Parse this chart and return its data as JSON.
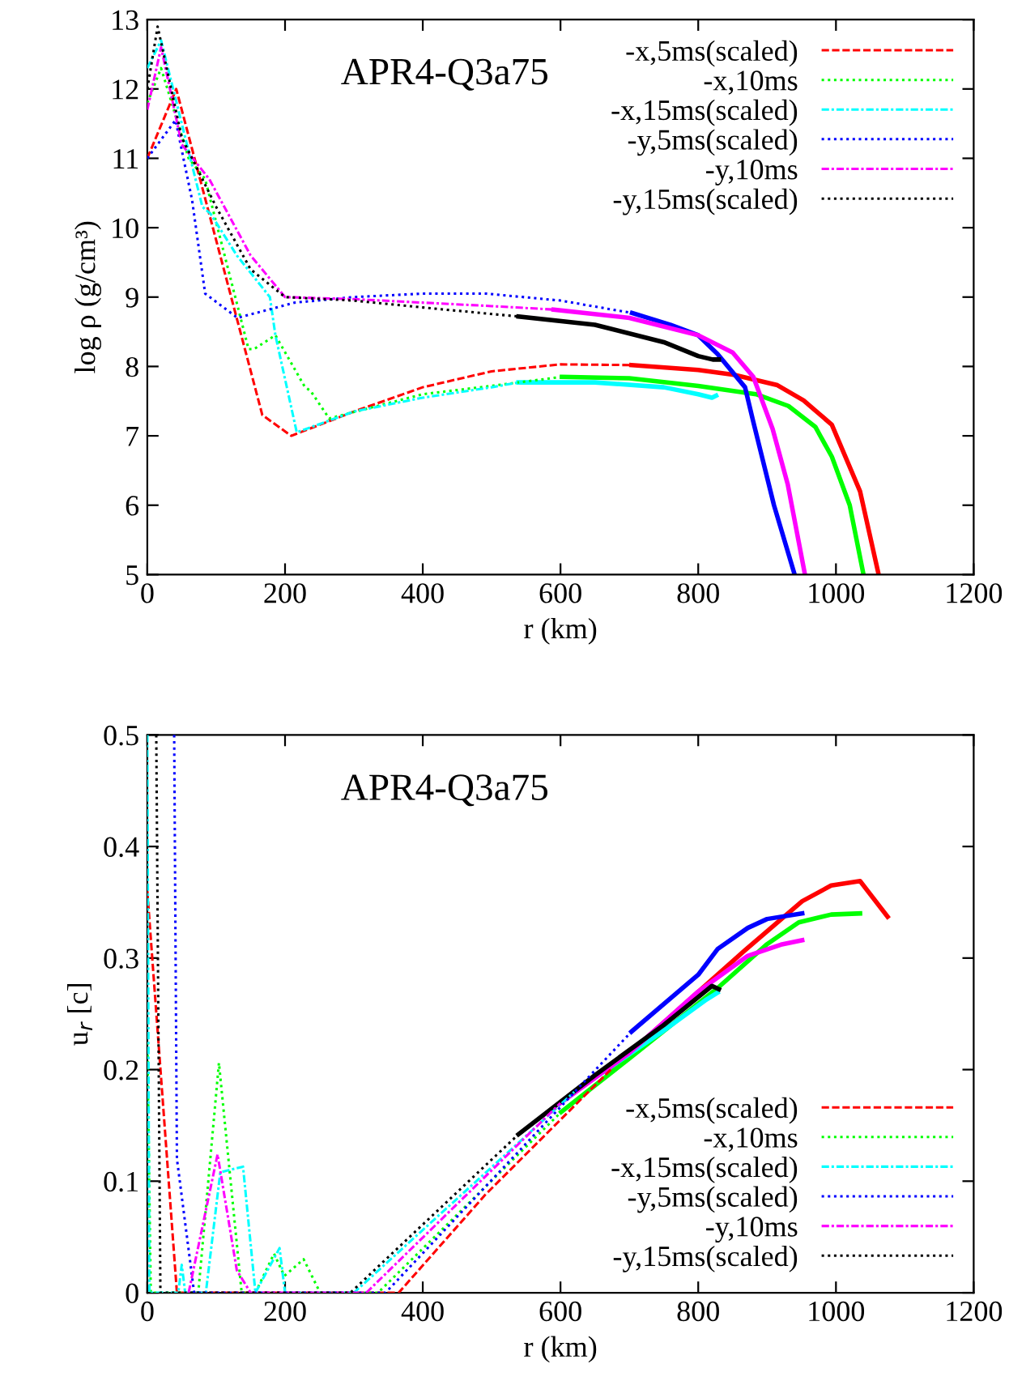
{
  "chart_data": [
    {
      "type": "line",
      "xlabel": "r (km)",
      "ylabel": "log ρ (g/cm³)",
      "annotations": [
        "APR4-Q3a75"
      ],
      "xlim": [
        0,
        1200
      ],
      "xticks": [
        0,
        200,
        400,
        600,
        800,
        1000,
        1200
      ],
      "ylim": [
        5,
        13
      ],
      "yticks": [
        5,
        6,
        7,
        8,
        9,
        10,
        11,
        12,
        13
      ],
      "grid": false,
      "legend": "top right",
      "marker": "none",
      "series": [
        {
          "name": "-x,5ms(scaled)",
          "color": "#ff0000",
          "line_style": "dashed",
          "x": [
            0,
            42,
            167,
            209,
            300,
            400,
            500,
            600,
            703
          ],
          "values": [
            11.0,
            12.0,
            7.3,
            7.0,
            7.35,
            7.7,
            7.93,
            8.03,
            8.02
          ]
        },
        {
          "name": "-x,10ms",
          "color": "#00ff00",
          "line_style": "dotted",
          "x": [
            0,
            20,
            60,
            84,
            147,
            155,
            186,
            229,
            237,
            264,
            400,
            500,
            602
          ],
          "values": [
            11.8,
            12.3,
            11.0,
            10.7,
            8.25,
            8.25,
            8.45,
            7.7,
            7.65,
            7.25,
            7.6,
            7.72,
            7.85
          ]
        },
        {
          "name": "-x,15ms(scaled)",
          "color": "#00ffff",
          "line_style": "dashdot",
          "x": [
            0,
            20,
            50,
            80,
            92,
            130,
            178,
            186,
            217,
            300,
            400,
            500,
            539
          ],
          "values": [
            12.3,
            12.7,
            11.5,
            10.3,
            10.2,
            9.6,
            9.0,
            8.45,
            7.05,
            7.35,
            7.55,
            7.7,
            7.77
          ]
        },
        {
          "name": "-y,5ms(scaled)",
          "color": "#0000ff",
          "line_style": "dotted",
          "x": [
            0,
            41,
            65,
            84,
            131,
            214,
            300,
            400,
            492,
            600,
            704
          ],
          "values": [
            11.0,
            11.55,
            10.4,
            9.05,
            8.7,
            8.92,
            9.0,
            9.05,
            9.05,
            8.95,
            8.77
          ]
        },
        {
          "name": "-y,10ms",
          "color": "#ff00ff",
          "line_style": "dashdot",
          "x": [
            0,
            20,
            50,
            90,
            150,
            200,
            300,
            400,
            500,
            590
          ],
          "values": [
            11.7,
            12.6,
            11.2,
            10.7,
            9.6,
            9.0,
            8.97,
            8.92,
            8.87,
            8.82
          ]
        },
        {
          "name": "-y,15ms(scaled)",
          "color": "#000000",
          "line_style": "dotted",
          "x": [
            0,
            15,
            50,
            100,
            150,
            200,
            300,
            400,
            539
          ],
          "values": [
            12.0,
            12.9,
            11.3,
            10.3,
            9.4,
            9.0,
            8.95,
            8.85,
            8.72
          ]
        },
        {
          "color": "#ff0000",
          "line_style": "solid",
          "x": [
            703,
            800,
            852,
            915,
            953,
            994,
            1035,
            1062
          ],
          "values": [
            8.02,
            7.95,
            7.88,
            7.73,
            7.51,
            7.16,
            6.2,
            5.0
          ]
        },
        {
          "color": "#00ff00",
          "line_style": "solid",
          "x": [
            602,
            700,
            800,
            884,
            931,
            970,
            994,
            1020,
            1040
          ],
          "values": [
            7.85,
            7.83,
            7.72,
            7.6,
            7.43,
            7.13,
            6.7,
            6.0,
            5.0
          ]
        },
        {
          "color": "#00ffff",
          "line_style": "solid",
          "x": [
            539,
            650,
            750,
            800,
            820,
            826
          ],
          "values": [
            7.77,
            7.77,
            7.7,
            7.6,
            7.55,
            7.58
          ]
        },
        {
          "color": "#0000ff",
          "line_style": "solid",
          "x": [
            704,
            760,
            800,
            828,
            868,
            880,
            910,
            940
          ],
          "values": [
            8.77,
            8.6,
            8.45,
            8.18,
            7.7,
            7.2,
            6.0,
            5.0
          ]
        },
        {
          "color": "#ff00ff",
          "line_style": "solid",
          "x": [
            590,
            700,
            800,
            850,
            880,
            908,
            930,
            955
          ],
          "values": [
            8.82,
            8.7,
            8.45,
            8.2,
            7.85,
            7.1,
            6.3,
            5.0
          ]
        },
        {
          "color": "#000000",
          "line_style": "solid",
          "x": [
            539,
            650,
            750,
            800,
            821,
            830
          ],
          "values": [
            8.72,
            8.6,
            8.35,
            8.15,
            8.1,
            8.1
          ]
        }
      ]
    },
    {
      "type": "line",
      "xlabel": "r (km)",
      "ylabel": "u$_{r}$ [c]",
      "annotations": [
        "APR4-Q3a75"
      ],
      "xlim": [
        0,
        1200
      ],
      "xticks": [
        0,
        200,
        400,
        600,
        800,
        1000,
        1200
      ],
      "ylim": [
        0,
        0.5
      ],
      "yticks": [
        0,
        0.1,
        0.2,
        0.3,
        0.4,
        0.5
      ],
      "grid": false,
      "legend": "bottom right",
      "marker": "none",
      "series": [
        {
          "name": "-x,5ms(scaled)",
          "color": "#ff0000",
          "line_style": "dashed",
          "x": [
            0,
            43,
            365,
            491,
            673
          ],
          "values": [
            0.36,
            0.0,
            0.0,
            0.088,
            0.2
          ]
        },
        {
          "name": "-x,10ms",
          "color": "#00ff00",
          "line_style": "dotted",
          "x": [
            0,
            5,
            74,
            104,
            137,
            157,
            184,
            199,
            227,
            251,
            335,
            601
          ],
          "values": [
            0.23,
            0.0,
            0.0,
            0.206,
            0.0,
            0.0,
            0.035,
            0.015,
            0.03,
            0.0,
            0.0,
            0.162
          ]
        },
        {
          "name": "-x,15ms(scaled)",
          "color": "#00ffff",
          "line_style": "dashdot",
          "x": [
            0,
            3,
            45,
            50,
            55,
            85,
            106,
            139,
            157,
            192,
            200,
            300,
            620
          ],
          "values": [
            0.5,
            0.0,
            0.0,
            0.025,
            0.0,
            0.0,
            0.108,
            0.113,
            0.0,
            0.04,
            0.0,
            0.0,
            0.18
          ]
        },
        {
          "name": "-y,5ms(scaled)",
          "color": "#0000ff",
          "line_style": "dotted",
          "x": [
            39,
            43,
            68,
            346,
            703
          ],
          "values": [
            0.5,
            0.12,
            0.0,
            0.0,
            0.234
          ]
        },
        {
          "name": "-y,10ms",
          "color": "#ff00ff",
          "line_style": "dashdot",
          "x": [
            60,
            102,
            130,
            150,
            318,
            600
          ],
          "values": [
            0.0,
            0.124,
            0.02,
            0.0,
            0.0,
            0.17
          ]
        },
        {
          "name": "-y,15ms(scaled)",
          "color": "#000000",
          "line_style": "dotted",
          "x": [
            13,
            19,
            295,
            539
          ],
          "values": [
            0.5,
            0.0,
            0.0,
            0.142
          ]
        },
        {
          "color": "#ff0000",
          "line_style": "solid",
          "x": [
            673,
            868,
            951,
            993,
            1035,
            1075
          ],
          "values": [
            0.2,
            0.307,
            0.351,
            0.365,
            0.369,
            0.337
          ]
        },
        {
          "color": "#00ff00",
          "line_style": "solid",
          "x": [
            601,
            700,
            828,
            899,
            946,
            993,
            1035
          ],
          "values": [
            0.162,
            0.21,
            0.273,
            0.312,
            0.332,
            0.339,
            0.34
          ]
        },
        {
          "color": "#00ffff",
          "line_style": "solid",
          "x": [
            620,
            750,
            810,
            828
          ],
          "values": [
            0.18,
            0.235,
            0.262,
            0.269
          ]
        },
        {
          "color": "#0000ff",
          "line_style": "solid",
          "x": [
            703,
            800,
            828,
            872,
            900,
            951
          ],
          "values": [
            0.234,
            0.285,
            0.308,
            0.327,
            0.335,
            0.34
          ]
        },
        {
          "color": "#ff00ff",
          "line_style": "solid",
          "x": [
            600,
            700,
            800,
            872,
            920,
            951
          ],
          "values": [
            0.17,
            0.215,
            0.27,
            0.302,
            0.312,
            0.316
          ]
        },
        {
          "color": "#000000",
          "line_style": "solid",
          "x": [
            539,
            650,
            750,
            810,
            820,
            830
          ],
          "values": [
            0.142,
            0.195,
            0.24,
            0.27,
            0.275,
            0.272
          ]
        }
      ]
    }
  ]
}
